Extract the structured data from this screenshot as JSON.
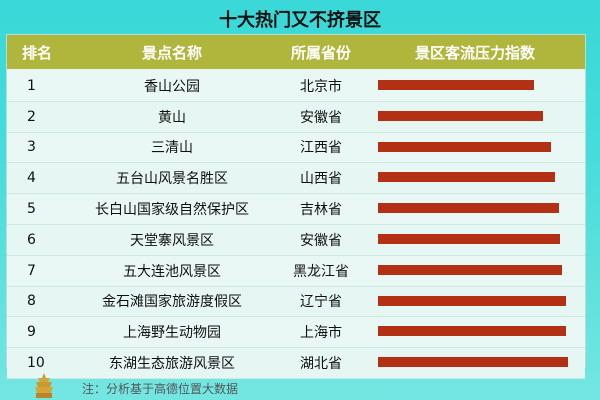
{
  "header": {
    "title": "十大热门又不挤景区"
  },
  "table": {
    "columns": [
      "排名",
      "景点名称",
      "所属省份",
      "景区客流压力指数"
    ],
    "rows": [
      {
        "rank": "1",
        "name": "香山公园",
        "province": "北京市"
      },
      {
        "rank": "2",
        "name": "黄山",
        "province": "安徽省"
      },
      {
        "rank": "3",
        "name": "三清山",
        "province": "江西省"
      },
      {
        "rank": "4",
        "name": "五台山风景名胜区",
        "province": "山西省"
      },
      {
        "rank": "5",
        "name": "长白山国家级自然保护区",
        "province": "吉林省"
      },
      {
        "rank": "6",
        "name": "天堂寨风景区",
        "province": "安徽省"
      },
      {
        "rank": "7",
        "name": "五大连池风景区",
        "province": "黑龙江省"
      },
      {
        "rank": "8",
        "name": "金石滩国家旅游度假区",
        "province": "辽宁省"
      },
      {
        "rank": "9",
        "name": "上海野生动物园",
        "province": "上海市"
      },
      {
        "rank": "10",
        "name": "东湖生态旅游风景区",
        "province": "湖北省"
      }
    ]
  },
  "chart_data": {
    "type": "bar",
    "categories": [
      "香山公园",
      "黄山",
      "三清山",
      "五台山风景名胜区",
      "长白山国家级自然保护区",
      "天堂寨风景区",
      "五大连池风景区",
      "金石滩国家旅游度假区",
      "上海野生动物园",
      "东湖生态旅游风景区"
    ],
    "values": [
      0.82,
      0.87,
      0.91,
      0.93,
      0.95,
      0.96,
      0.97,
      0.99,
      0.99,
      1.0
    ],
    "title": "景区客流压力指数",
    "xlabel": "",
    "ylabel": "",
    "xlim": [
      0,
      1.0
    ]
  },
  "footer": {
    "note": "注：分析基于高德位置大数据"
  },
  "colors": {
    "bar": "#b33015",
    "header_bg": "#afb63b"
  },
  "icons": {
    "footer_icon": "pagoda-icon"
  }
}
